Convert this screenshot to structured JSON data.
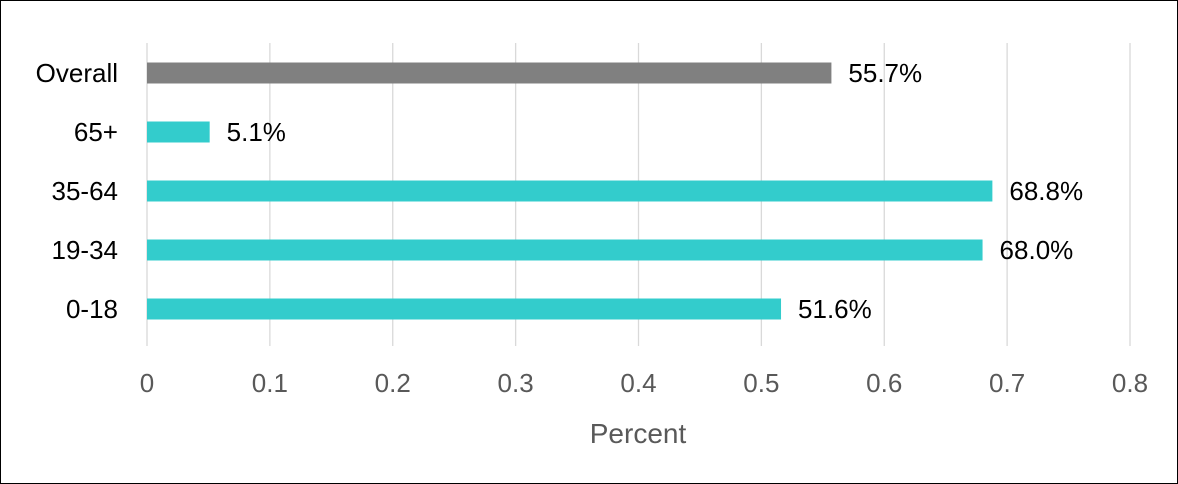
{
  "chart_data": {
    "type": "bar",
    "orientation": "horizontal",
    "categories": [
      "Overall",
      "65+",
      "35-64",
      "19-34",
      "0-18"
    ],
    "values": [
      0.557,
      0.051,
      0.688,
      0.68,
      0.516
    ],
    "data_labels": [
      "55.7%",
      "5.1%",
      "68.8%",
      "68.0%",
      "51.6%"
    ],
    "bar_colors": [
      "#808080",
      "#33CCCC",
      "#33CCCC",
      "#33CCCC",
      "#33CCCC"
    ],
    "xlabel": "Percent",
    "xlim": [
      0,
      0.8
    ],
    "xticks": [
      0,
      0.1,
      0.2,
      0.3,
      0.4,
      0.5,
      0.6,
      0.7,
      0.8
    ],
    "xtick_labels": [
      "0",
      "0.1",
      "0.2",
      "0.3",
      "0.4",
      "0.5",
      "0.6",
      "0.7",
      "0.8"
    ],
    "grid": true,
    "legend": "none"
  }
}
